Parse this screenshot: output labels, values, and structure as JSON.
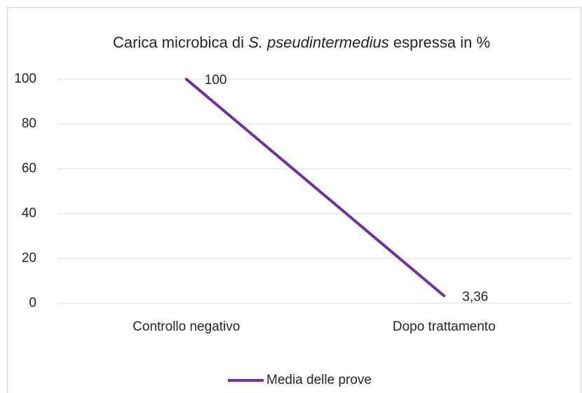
{
  "chart_data": {
    "type": "line",
    "title": [
      "Carica microbica di",
      "S. pseudintermedius",
      "espressa in %"
    ],
    "categories": [
      "Controllo negativo",
      "Dopo trattamento"
    ],
    "series": [
      {
        "name": "Media delle prove",
        "color": "#7030a0",
        "values": [
          100,
          3.36
        ],
        "value_labels": [
          "100",
          "3,36"
        ]
      }
    ],
    "ylim": [
      0,
      100
    ],
    "yticks": [
      0,
      20,
      40,
      60,
      80,
      100
    ],
    "grid": true,
    "legend": "bottom"
  }
}
